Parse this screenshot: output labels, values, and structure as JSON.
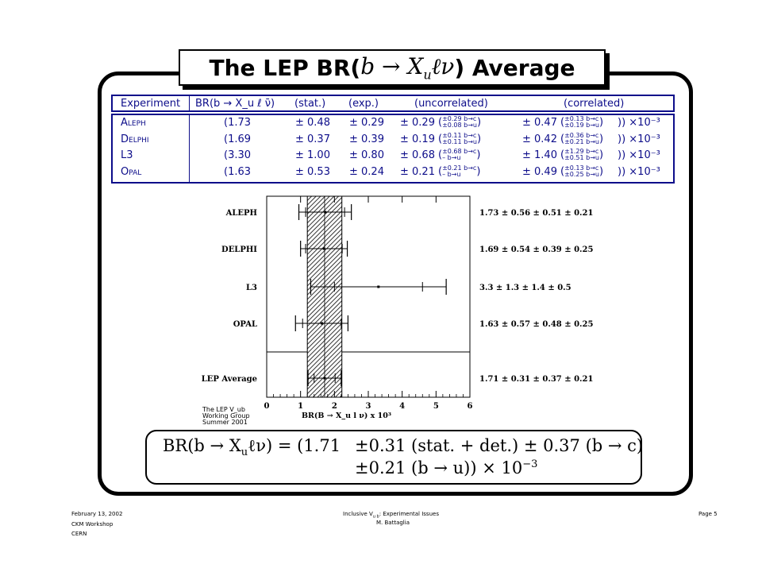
{
  "title": {
    "prefix": "The LEP BR(",
    "formula": "b → X",
    "formula_sub": "u",
    "formula_rest": "ℓν",
    "suffix": ") Average"
  },
  "table": {
    "headers": [
      "Experiment",
      "BR(b → X_u ℓ ν̄)",
      "(stat.)",
      "(exp.)",
      "(uncorrelated)",
      "(correlated)"
    ],
    "rows": [
      {
        "experiment": "Aleph",
        "br": "(1.73",
        "stat": "± 0.48",
        "exp": "± 0.29",
        "unc": "± 0.29",
        "unc_up": "±0.29 b→c",
        "unc_dn": "±0.08 b→u",
        "cor": "± 0.47",
        "cor_up": "±0.13 b→c",
        "cor_dn": "±0.19 b→u",
        "scale": ")) ×10⁻³"
      },
      {
        "experiment": "Delphi",
        "br": "(1.69",
        "stat": "± 0.37",
        "exp": "± 0.39",
        "unc": "± 0.19",
        "unc_up": "±0.11 b→c",
        "unc_dn": "±0.11 b→u",
        "cor": "± 0.42",
        "cor_up": "±0.36 b→c",
        "cor_dn": "±0.21 b→u",
        "scale": ")) ×10⁻³"
      },
      {
        "experiment": "L3",
        "br": "(3.30",
        "stat": "± 1.00",
        "exp": "± 0.80",
        "unc": "± 0.68",
        "unc_up": "±0.68 b→c",
        "unc_dn": "– b→u",
        "cor": "± 1.40",
        "cor_up": "±1.29 b→c",
        "cor_dn": "±0.51 b→u",
        "scale": ")) ×10⁻³"
      },
      {
        "experiment": "Opal",
        "br": "(1.63",
        "stat": "± 0.53",
        "exp": "± 0.24",
        "unc": "± 0.21",
        "unc_up": "±0.21 b→c",
        "unc_dn": "– b→u",
        "cor": "± 0.49",
        "cor_up": "±0.13 b→c",
        "cor_dn": "±0.25 b→u",
        "scale": ")) ×10⁻³"
      }
    ]
  },
  "chart_data": {
    "type": "scatter",
    "xlabel": "BR(B → X_u l ν) x 10³",
    "xlim": [
      0,
      6
    ],
    "xticks": [
      "0",
      "1",
      "2",
      "3",
      "4",
      "5",
      "6"
    ],
    "band": {
      "center": 1.71,
      "low": 1.2,
      "high": 2.22
    },
    "entries": [
      {
        "label": "ALEPH",
        "value": 1.73,
        "inner": [
          1.15,
          2.3
        ],
        "outer": [
          0.95,
          2.5
        ],
        "text": "1.73 ± 0.56 ± 0.51 ± 0.21"
      },
      {
        "label": "DELPHI",
        "value": 1.69,
        "inner": [
          1.15,
          2.23
        ],
        "outer": [
          1.0,
          2.38
        ],
        "text": "1.69 ± 0.54 ± 0.39 ± 0.25"
      },
      {
        "label": "L3",
        "value": 3.3,
        "inner": [
          2.0,
          4.6
        ],
        "outer": [
          1.3,
          5.3
        ],
        "text": "3.3 ± 1.3 ± 1.4 ± 0.5"
      },
      {
        "label": "OPAL",
        "value": 1.63,
        "inner": [
          1.06,
          2.2
        ],
        "outer": [
          0.85,
          2.4
        ],
        "text": "1.63 ± 0.57 ± 0.48 ± 0.25"
      },
      {
        "label": "LEP Average",
        "value": 1.71,
        "inner": [
          1.4,
          2.02
        ],
        "outer": [
          1.22,
          2.2
        ],
        "text": "1.71 ± 0.31 ± 0.37 ± 0.21"
      }
    ],
    "working_group": [
      "The LEP V_ub",
      "Working Group",
      "Summer 2001"
    ]
  },
  "result": {
    "line1_left": "BR(b → X",
    "line1_sub": "u",
    "line1_mid": "ℓν) = (1.71",
    "line1_right": "±0.31 (stat. + det.) ± 0.37 (b → c)",
    "line2": "±0.21 (b → u)) × 10",
    "line2_sup": "−3"
  },
  "footer": {
    "date": "February 13, 2002",
    "event": "CKM Workshop",
    "place": "CERN",
    "topic_pre": "Inclusive V",
    "topic_sub": "u b",
    "topic_post": ": Experimental Issues",
    "author": "M. Battaglia",
    "page": "Page 5"
  }
}
